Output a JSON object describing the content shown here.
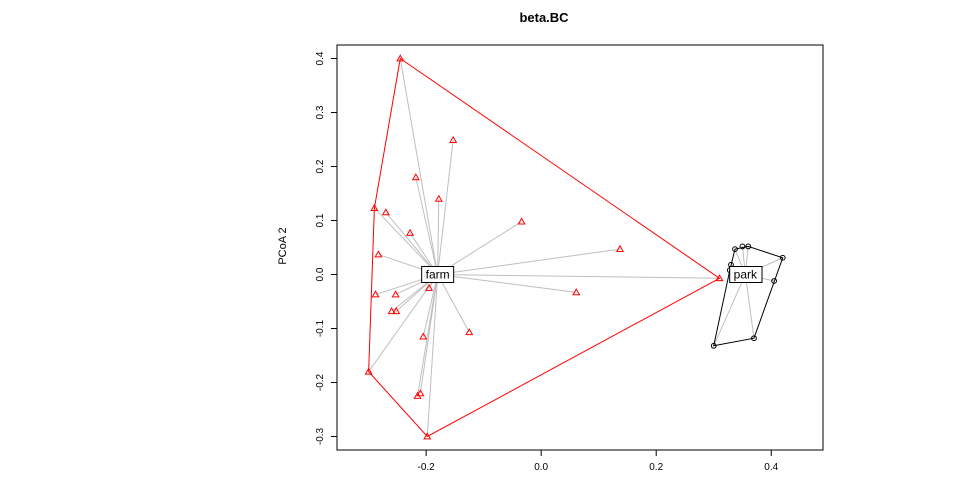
{
  "chart_data": {
    "type": "scatter",
    "title": "beta.BC",
    "xlabel": "",
    "ylabel": "PCoA 2",
    "xlim": [
      -0.355,
      0.49
    ],
    "ylim": [
      -0.325,
      0.425
    ],
    "x_ticks": [
      "-0.2",
      "0.0",
      "0.2",
      "0.4"
    ],
    "x_tick_values": [
      -0.2,
      0.0,
      0.2,
      0.4
    ],
    "y_ticks": [
      "-0.3",
      "-0.2",
      "-0.1",
      "0.0",
      "0.1",
      "0.2",
      "0.3",
      "0.4"
    ],
    "y_tick_values": [
      -0.3,
      -0.2,
      -0.1,
      0.0,
      0.1,
      0.2,
      0.3,
      0.4
    ],
    "grid": false,
    "spider_color": "#bfbfbf",
    "groups": [
      {
        "name": "farm",
        "color": "#ff0000",
        "marker": "triangle",
        "centroid": [
          -0.18,
          0.0
        ],
        "points": [
          [
            -0.245,
            0.4
          ],
          [
            -0.153,
            0.249
          ],
          [
            -0.218,
            0.18
          ],
          [
            -0.178,
            0.14
          ],
          [
            -0.29,
            0.123
          ],
          [
            -0.27,
            0.115
          ],
          [
            -0.228,
            0.077
          ],
          [
            -0.283,
            0.037
          ],
          [
            -0.034,
            0.098
          ],
          [
            0.137,
            0.047
          ],
          [
            0.061,
            -0.033
          ],
          [
            -0.288,
            -0.037
          ],
          [
            -0.253,
            -0.037
          ],
          [
            -0.195,
            -0.025
          ],
          [
            -0.26,
            -0.068
          ],
          [
            -0.252,
            -0.068
          ],
          [
            -0.125,
            -0.107
          ],
          [
            -0.205,
            -0.115
          ],
          [
            -0.3,
            -0.18
          ],
          [
            -0.21,
            -0.22
          ],
          [
            -0.215,
            -0.225
          ],
          [
            -0.198,
            -0.3
          ],
          [
            0.31,
            -0.007
          ]
        ],
        "hull": [
          [
            -0.245,
            0.4
          ],
          [
            0.31,
            -0.007
          ],
          [
            -0.198,
            -0.3
          ],
          [
            -0.3,
            -0.18
          ],
          [
            -0.29,
            0.123
          ]
        ]
      },
      {
        "name": "park",
        "color": "#000000",
        "marker": "circle",
        "centroid": [
          0.355,
          0.0
        ],
        "points": [
          [
            0.337,
            0.047
          ],
          [
            0.35,
            0.052
          ],
          [
            0.36,
            0.052
          ],
          [
            0.42,
            0.031
          ],
          [
            0.33,
            0.018
          ],
          [
            0.328,
            0.008
          ],
          [
            0.405,
            -0.012
          ],
          [
            0.37,
            -0.118
          ],
          [
            0.3,
            -0.132
          ]
        ],
        "hull": [
          [
            0.337,
            0.047
          ],
          [
            0.36,
            0.052
          ],
          [
            0.42,
            0.031
          ],
          [
            0.37,
            -0.118
          ],
          [
            0.3,
            -0.132
          ],
          [
            0.328,
            0.008
          ]
        ]
      }
    ]
  }
}
